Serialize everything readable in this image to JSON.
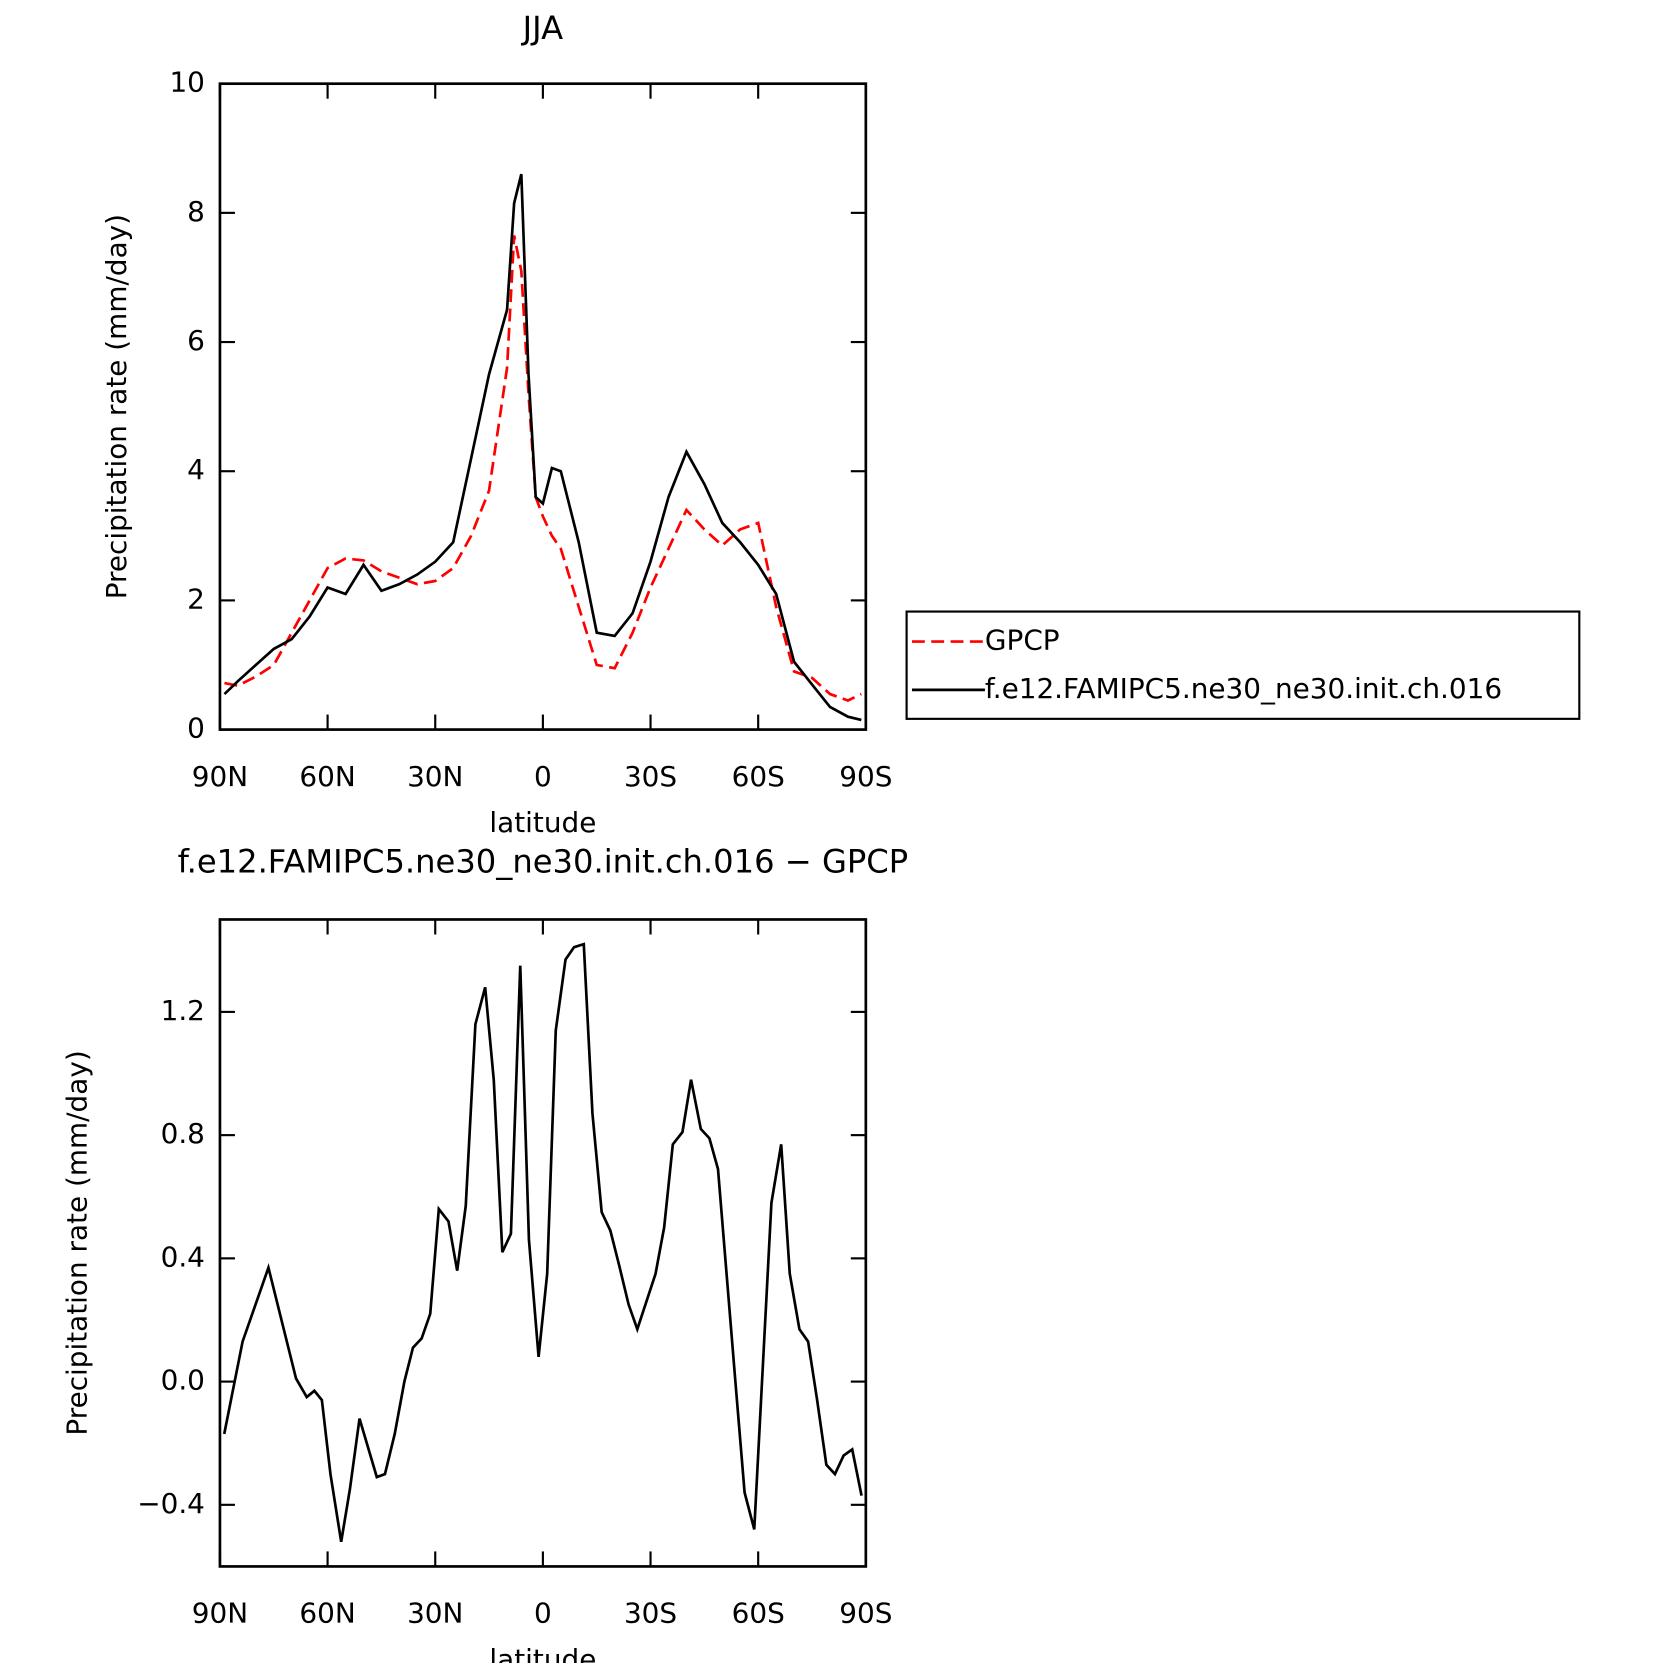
{
  "chart_data": [
    {
      "type": "line",
      "title": "JJA",
      "xlabel": "latitude",
      "ylabel": "Precipitation rate (mm/day)",
      "x": [
        88.75,
        85,
        80,
        75,
        70,
        65,
        60,
        55,
        50,
        45,
        40,
        35,
        30,
        25,
        20,
        15,
        10,
        8,
        6,
        4,
        2,
        0,
        -2.5,
        -5,
        -10,
        -15,
        -20,
        -25,
        -30,
        -35,
        -40,
        -45,
        -50,
        -55,
        -60,
        -65,
        -70,
        -75,
        -80,
        -85,
        -88.75
      ],
      "series": [
        {
          "name": "GPCP",
          "color": "#ff0000",
          "line_style": "dashed",
          "values": [
            0.72,
            0.68,
            0.82,
            1.0,
            1.5,
            2.0,
            2.5,
            2.65,
            2.62,
            2.45,
            2.35,
            2.25,
            2.3,
            2.5,
            3.0,
            3.7,
            5.6,
            7.65,
            7.1,
            5.2,
            3.6,
            3.3,
            3.0,
            2.8,
            1.9,
            1.0,
            0.95,
            1.5,
            2.2,
            2.8,
            3.4,
            3.1,
            2.85,
            3.1,
            3.2,
            1.9,
            0.9,
            0.8,
            0.55,
            0.45,
            0.55
          ]
        },
        {
          "name": "f.e12.FAMIPC5.ne30_ne30.init.ch.016",
          "color": "#000000",
          "line_style": "solid",
          "values": [
            0.55,
            0.75,
            1.0,
            1.25,
            1.4,
            1.75,
            2.2,
            2.1,
            2.55,
            2.15,
            2.25,
            2.4,
            2.6,
            2.9,
            4.2,
            5.5,
            6.5,
            8.15,
            8.6,
            5.5,
            3.6,
            3.5,
            4.05,
            4.0,
            2.9,
            1.5,
            1.45,
            1.8,
            2.6,
            3.6,
            4.3,
            3.8,
            3.2,
            2.9,
            2.55,
            2.1,
            1.05,
            0.7,
            0.35,
            0.2,
            0.15
          ]
        }
      ],
      "xlim": [
        90,
        -90
      ],
      "xticks": [
        {
          "value": 90,
          "label": "90N"
        },
        {
          "value": 60,
          "label": "60N"
        },
        {
          "value": 30,
          "label": "30N"
        },
        0,
        {
          "value": -30,
          "label": "30S"
        },
        {
          "value": -60,
          "label": "60S"
        },
        {
          "value": -90,
          "label": "90S"
        }
      ],
      "ylim": [
        0,
        10
      ],
      "yticks": [
        0,
        2,
        4,
        6,
        8,
        10
      ],
      "legend": "right"
    },
    {
      "type": "line",
      "title": "f.e12.FAMIPC5.ne30_ne30.init.ch.016 − GPCP",
      "xlabel": "latitude",
      "ylabel": "Precipitation rate (mm/day)",
      "x": [
        88.8,
        83.7,
        76.5,
        71.8,
        68.8,
        65.8,
        63.7,
        61.6,
        59.2,
        56.2,
        53.8,
        51.1,
        46.3,
        44,
        41.3,
        38.6,
        36.2,
        33.8,
        31.4,
        29,
        26.3,
        23.9,
        21.5,
        18.8,
        16.1,
        13.7,
        11.3,
        8.9,
        6.3,
        3.9,
        1.2,
        -1.2,
        -3.6,
        -6.3,
        -8.7,
        -11.4,
        -13.8,
        -16.4,
        -18.8,
        -21.2,
        -23.9,
        -26.3,
        -31.4,
        -33.8,
        -36.2,
        -38.9,
        -41.3,
        -44,
        -46.4,
        -48.8,
        -53.8,
        -56.2,
        -58.9,
        -61.3,
        -63.7,
        -66.4,
        -68.8,
        -71.5,
        -73.9,
        -76.3,
        -79,
        -81.4,
        -83.8,
        -86.2,
        -88.8
      ],
      "series": [
        {
          "color": "#000000",
          "line_style": "solid",
          "values": [
            -0.17,
            0.13,
            0.37,
            0.15,
            0.01,
            -0.05,
            -0.03,
            -0.06,
            -0.3,
            -0.52,
            -0.35,
            -0.12,
            -0.31,
            -0.3,
            -0.17,
            0,
            0.11,
            0.14,
            0.22,
            0.56,
            0.52,
            0.36,
            0.57,
            1.16,
            1.28,
            0.98,
            0.42,
            0.48,
            1.35,
            0.46,
            0.08,
            0.35,
            1.14,
            1.37,
            1.41,
            1.42,
            0.87,
            0.55,
            0.49,
            0.38,
            0.25,
            0.17,
            0.35,
            0.5,
            0.77,
            0.81,
            0.98,
            0.82,
            0.79,
            0.69,
            -0.02,
            -0.36,
            -0.48,
            0.05,
            0.58,
            0.77,
            0.35,
            0.17,
            0.13,
            -0.05,
            -0.27,
            -0.3,
            -0.24,
            -0.22,
            -0.37
          ]
        }
      ],
      "xlim": [
        90,
        -90
      ],
      "xticks": [
        {
          "value": 90,
          "label": "90N"
        },
        {
          "value": 60,
          "label": "60N"
        },
        {
          "value": 30,
          "label": "30N"
        },
        0,
        {
          "value": -30,
          "label": "30S"
        },
        {
          "value": -60,
          "label": "60S"
        },
        {
          "value": -90,
          "label": "90S"
        }
      ],
      "ylim": [
        -0.6,
        1.5
      ],
      "yticks": [
        {
          "value": -0.4,
          "label": "−0.4"
        },
        {
          "value": 0,
          "label": "0.0"
        },
        0.4,
        0.8,
        1.2
      ]
    }
  ]
}
